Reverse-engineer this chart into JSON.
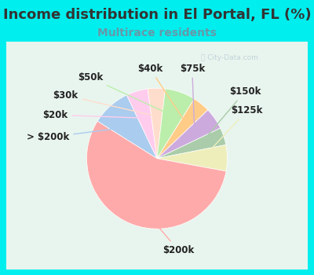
{
  "title": "Income distribution in El Portal, FL (%)",
  "subtitle": "Multirace residents",
  "title_color": "#333333",
  "subtitle_color": "#6699aa",
  "background_color": "#00eeee",
  "chart_bg_color": "#e8f5ee",
  "watermark": "City-Data.com",
  "slices": [
    {
      "label": "> $200k",
      "value": 9,
      "color": "#aaccee"
    },
    {
      "label": "$20k",
      "value": 5,
      "color": "#ffccee"
    },
    {
      "label": "$30k",
      "value": 4,
      "color": "#ffddcc"
    },
    {
      "label": "$50k",
      "value": 7,
      "color": "#bbeeaa"
    },
    {
      "label": "$40k",
      "value": 4,
      "color": "#ffcc88"
    },
    {
      "label": "$75k",
      "value": 5,
      "color": "#ccaadd"
    },
    {
      "label": "$150k",
      "value": 4,
      "color": "#aaccaa"
    },
    {
      "label": "$125k",
      "value": 6,
      "color": "#eeeebb"
    },
    {
      "label": "$200k",
      "value": 56,
      "color": "#ffaaaa"
    }
  ],
  "label_fontsize": 8.5,
  "title_fontsize": 13,
  "subtitle_fontsize": 10
}
